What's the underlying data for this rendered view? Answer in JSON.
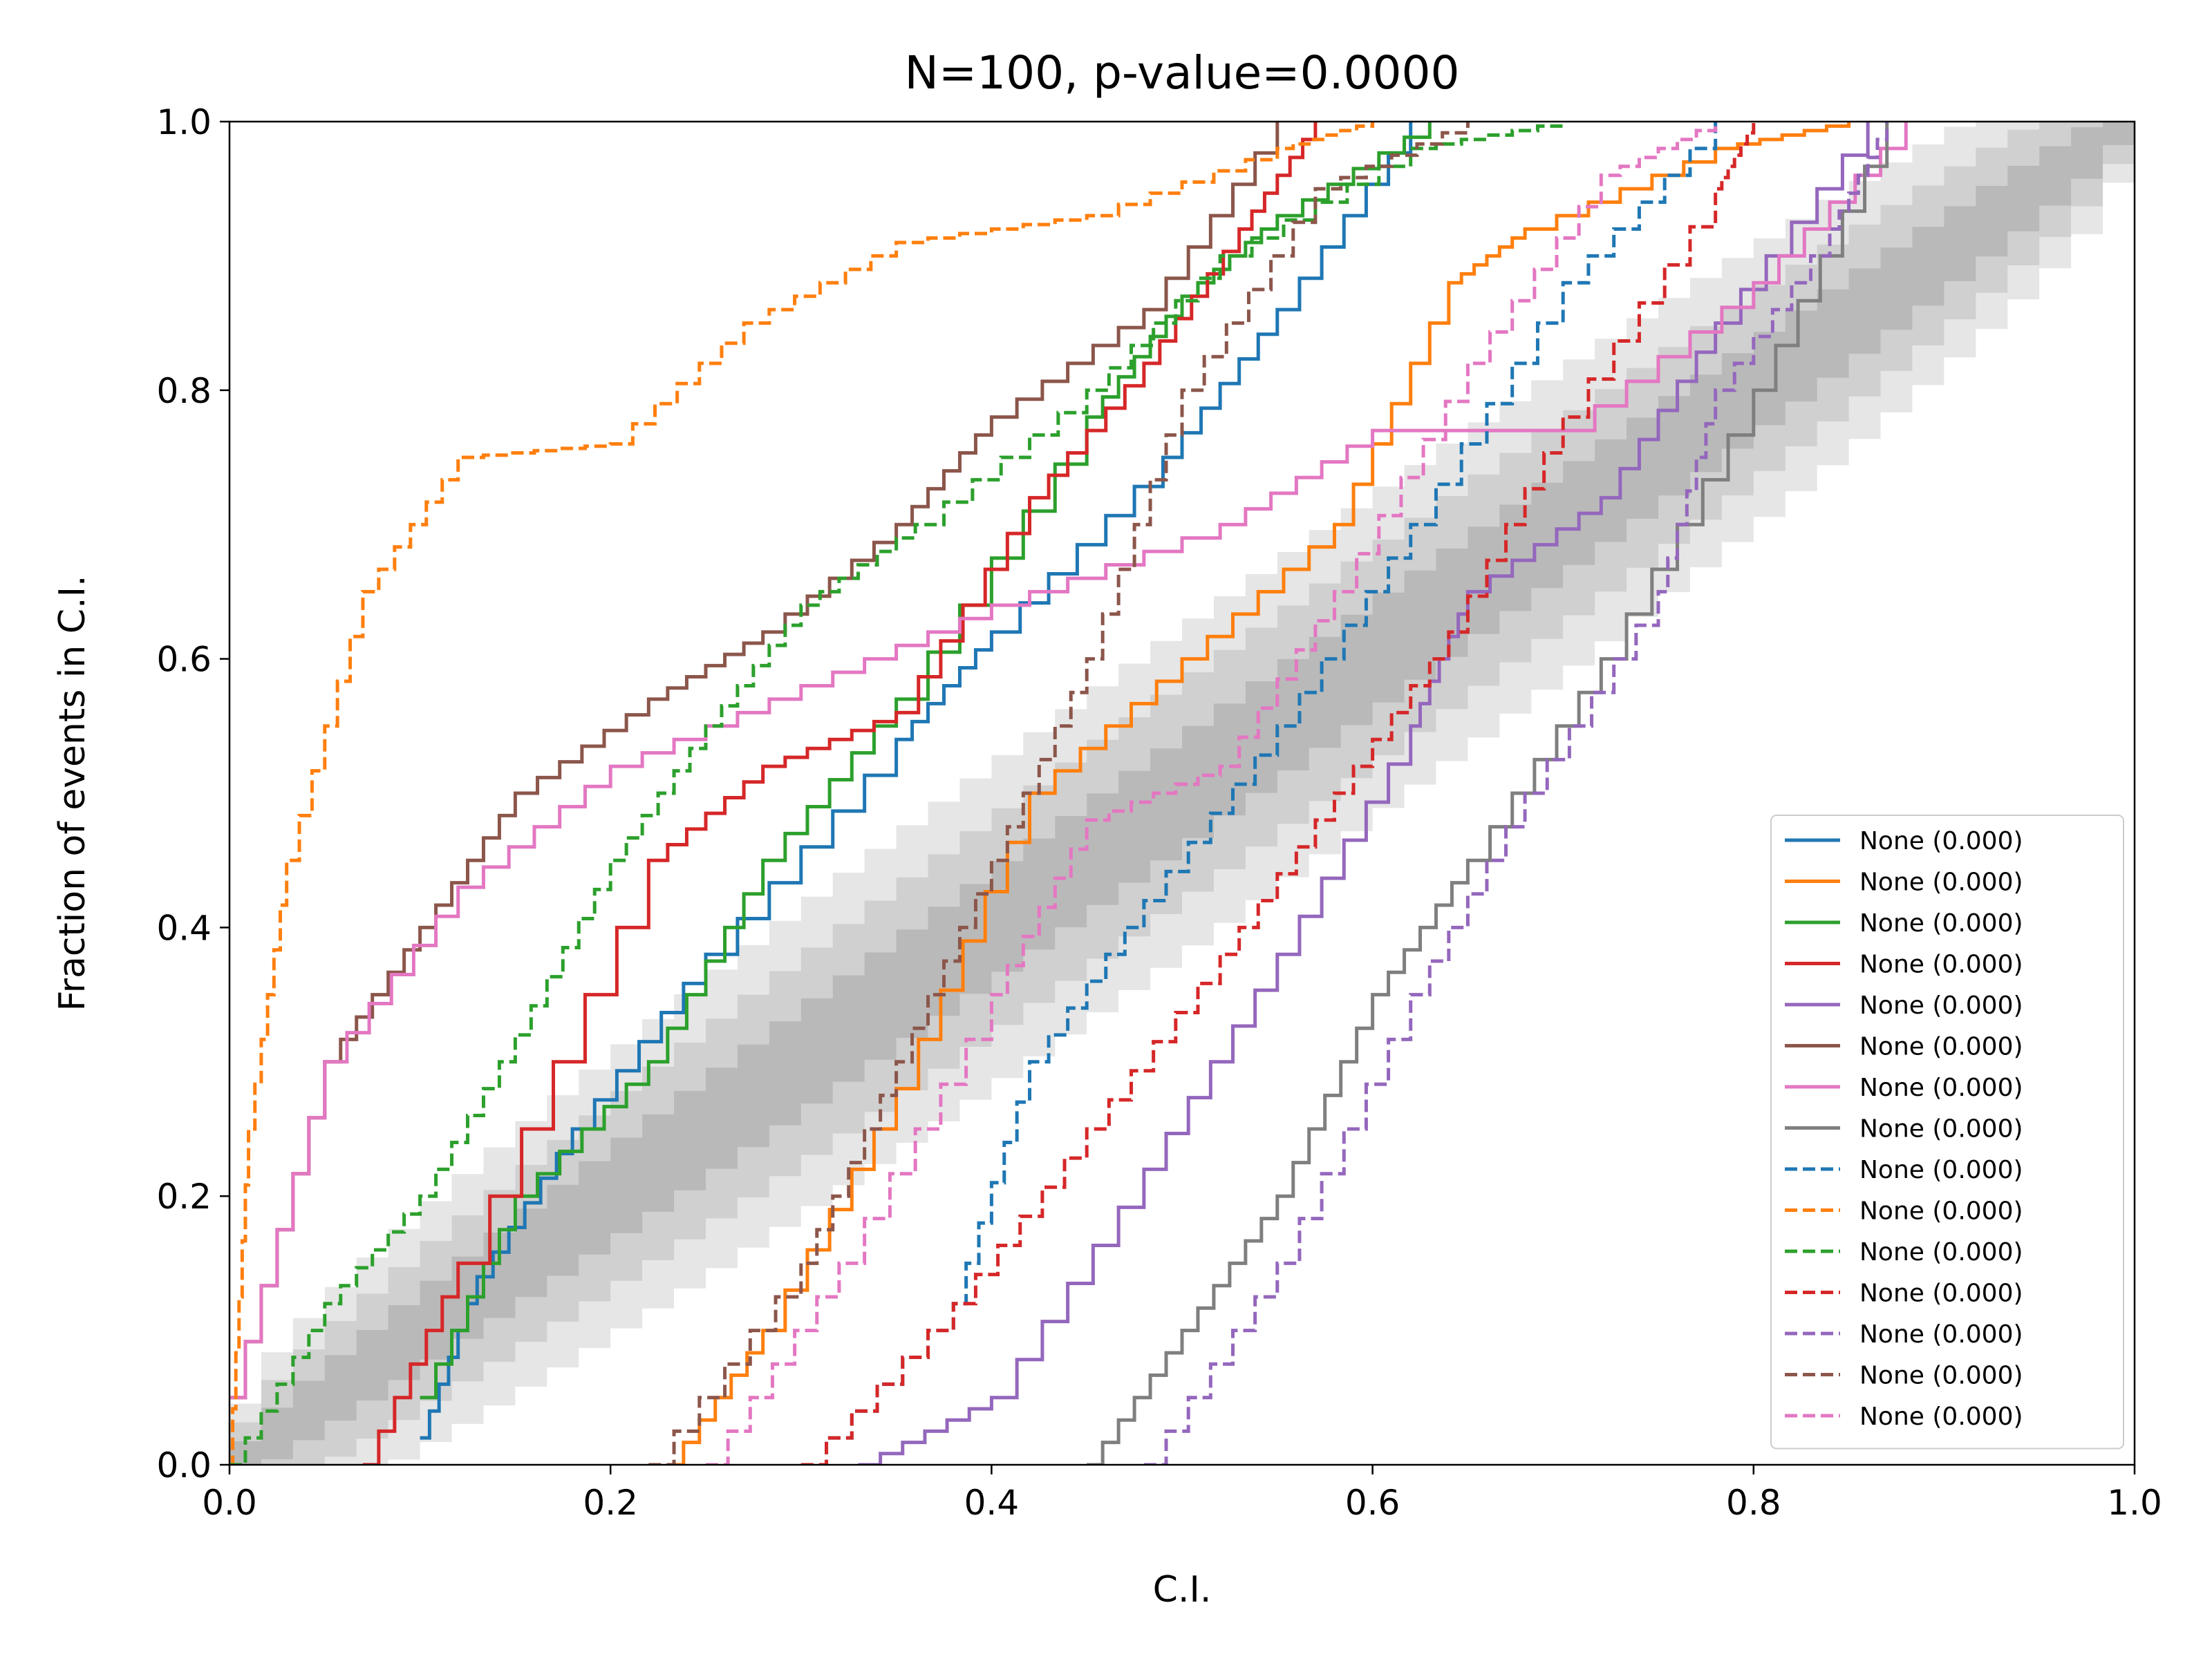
{
  "chart_data": {
    "type": "line",
    "title": "N=100, p-value=0.0000",
    "xlabel": "C.I.",
    "ylabel": "Fraction of events in C.I.",
    "xlim": [
      0,
      1
    ],
    "ylim": [
      0,
      1
    ],
    "x_ticks": [
      "0.0",
      "0.2",
      "0.4",
      "0.6",
      "0.8",
      "1.0"
    ],
    "y_ticks": [
      "0.0",
      "0.2",
      "0.4",
      "0.6",
      "0.8",
      "1.0"
    ],
    "grid": false,
    "legend_position": "lower-right",
    "confidence_bands": [
      {
        "level": "outer",
        "color": "#e6e6e6",
        "half_width": 0.13
      },
      {
        "level": "middle",
        "color": "#d0d0d0",
        "half_width": 0.09
      },
      {
        "level": "inner",
        "color": "#b9b9b9",
        "half_width": 0.05
      }
    ],
    "series": [
      {
        "name": "None (0.000)",
        "color": "#1f77b4",
        "dash": "solid",
        "x": [
          0.1,
          0.13,
          0.18,
          0.25,
          0.35,
          0.4,
          0.49,
          0.55,
          0.62
        ],
        "y": [
          0.02,
          0.14,
          0.25,
          0.38,
          0.54,
          0.62,
          0.75,
          0.86,
          1.0
        ]
      },
      {
        "name": "None (0.000)",
        "color": "#ff7f0e",
        "dash": "solid",
        "x": [
          0.23,
          0.28,
          0.35,
          0.42,
          0.5,
          0.58,
          0.64,
          0.68,
          0.78,
          0.85
        ],
        "y": [
          0.0,
          0.1,
          0.28,
          0.5,
          0.6,
          0.7,
          0.88,
          0.92,
          0.98,
          1.0
        ]
      },
      {
        "name": "None (0.000)",
        "color": "#2ca02c",
        "dash": "solid",
        "x": [
          0.1,
          0.15,
          0.22,
          0.28,
          0.35,
          0.45,
          0.5,
          0.55,
          0.63
        ],
        "y": [
          0.05,
          0.2,
          0.3,
          0.45,
          0.57,
          0.78,
          0.87,
          0.93,
          1.0
        ]
      },
      {
        "name": "None (0.000)",
        "color": "#d62728",
        "dash": "solid",
        "x": [
          0.07,
          0.12,
          0.22,
          0.28,
          0.35,
          0.42,
          0.48,
          0.53,
          0.57
        ],
        "y": [
          0.0,
          0.15,
          0.45,
          0.52,
          0.56,
          0.72,
          0.82,
          0.92,
          1.0
        ]
      },
      {
        "name": "None (0.000)",
        "color": "#9467bd",
        "dash": "solid",
        "x": [
          0.33,
          0.4,
          0.48,
          0.55,
          0.62,
          0.65,
          0.72,
          0.78,
          0.86
        ],
        "y": [
          0.0,
          0.05,
          0.22,
          0.38,
          0.55,
          0.65,
          0.72,
          0.85,
          1.0
        ]
      },
      {
        "name": "None (0.000)",
        "color": "#8c564b",
        "dash": "solid",
        "x": [
          0.0,
          0.05,
          0.1,
          0.15,
          0.22,
          0.28,
          0.35,
          0.4,
          0.48,
          0.55
        ],
        "y": [
          0.05,
          0.3,
          0.4,
          0.5,
          0.57,
          0.62,
          0.7,
          0.78,
          0.86,
          1.0
        ]
      },
      {
        "name": "None (0.000)",
        "color": "#e377c2",
        "dash": "solid",
        "x": [
          0.0,
          0.05,
          0.12,
          0.2,
          0.3,
          0.4,
          0.52,
          0.6,
          0.7,
          0.8,
          0.88
        ],
        "y": [
          0.05,
          0.3,
          0.43,
          0.52,
          0.58,
          0.64,
          0.7,
          0.77,
          0.77,
          0.88,
          1.0
        ]
      },
      {
        "name": "None (0.000)",
        "color": "#7f7f7f",
        "dash": "solid",
        "x": [
          0.45,
          0.5,
          0.55,
          0.6,
          0.65,
          0.72,
          0.8,
          0.87
        ],
        "y": [
          0.0,
          0.1,
          0.2,
          0.35,
          0.45,
          0.6,
          0.8,
          1.0
        ]
      },
      {
        "name": "None (0.000)",
        "color": "#1f77b4",
        "dash": "dashed",
        "x": [
          0.3,
          0.38,
          0.42,
          0.48,
          0.55,
          0.62,
          0.7,
          0.78
        ],
        "y": [
          0.0,
          0.12,
          0.3,
          0.42,
          0.55,
          0.7,
          0.88,
          1.0
        ]
      },
      {
        "name": "None (0.000)",
        "color": "#ff7f0e",
        "dash": "dashed",
        "x": [
          0.0,
          0.01,
          0.03,
          0.07,
          0.12,
          0.2,
          0.27,
          0.35,
          0.45,
          0.55,
          0.6
        ],
        "y": [
          0.0,
          0.25,
          0.45,
          0.65,
          0.75,
          0.76,
          0.85,
          0.91,
          0.93,
          0.98,
          1.0
        ]
      },
      {
        "name": "None (0.000)",
        "color": "#2ca02c",
        "dash": "dashed",
        "x": [
          0.0,
          0.05,
          0.1,
          0.15,
          0.2,
          0.25,
          0.3,
          0.36,
          0.45,
          0.52,
          0.62,
          0.7
        ],
        "y": [
          0.0,
          0.12,
          0.2,
          0.32,
          0.45,
          0.55,
          0.64,
          0.7,
          0.8,
          0.9,
          0.98,
          1.0
        ]
      },
      {
        "name": "None (0.000)",
        "color": "#d62728",
        "dash": "dashed",
        "x": [
          0.3,
          0.38,
          0.45,
          0.52,
          0.58,
          0.64,
          0.7,
          0.78,
          0.8
        ],
        "y": [
          0.0,
          0.12,
          0.25,
          0.38,
          0.5,
          0.62,
          0.78,
          0.95,
          1.0
        ]
      },
      {
        "name": "None (0.000)",
        "color": "#9467bd",
        "dash": "dashed",
        "x": [
          0.48,
          0.55,
          0.62,
          0.68,
          0.75,
          0.78,
          0.84,
          0.87
        ],
        "y": [
          0.0,
          0.15,
          0.35,
          0.5,
          0.65,
          0.8,
          0.92,
          1.0
        ]
      },
      {
        "name": "None (0.000)",
        "color": "#8c564b",
        "dash": "dashed",
        "x": [
          0.22,
          0.3,
          0.35,
          0.4,
          0.45,
          0.5,
          0.57,
          0.65
        ],
        "y": [
          0.0,
          0.15,
          0.3,
          0.45,
          0.6,
          0.8,
          0.95,
          1.0
        ]
      },
      {
        "name": "None (0.000)",
        "color": "#e377c2",
        "dash": "dashed",
        "x": [
          0.25,
          0.32,
          0.4,
          0.45,
          0.52,
          0.58,
          0.65,
          0.72,
          0.78
        ],
        "y": [
          0.0,
          0.15,
          0.35,
          0.48,
          0.52,
          0.65,
          0.82,
          0.96,
          1.0
        ]
      }
    ]
  }
}
